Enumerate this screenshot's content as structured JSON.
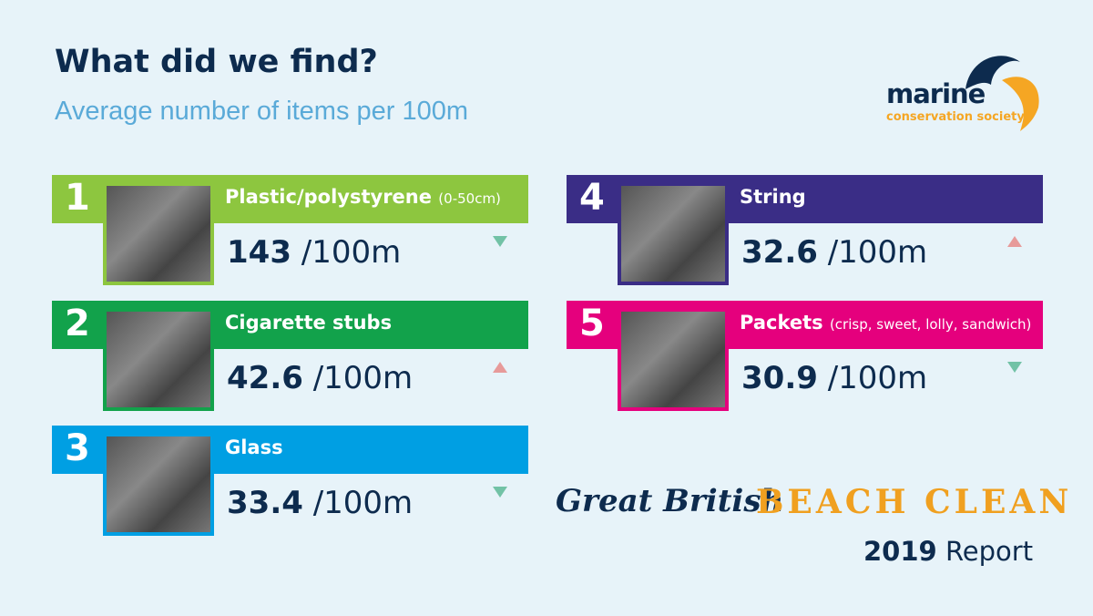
{
  "header": {
    "title": "What did we find?",
    "subtitle": "Average number of items per 100m"
  },
  "logo": {
    "name": "marine",
    "tagline": "conservation society"
  },
  "items": [
    {
      "rank": "1",
      "name": "Plastic/polystyrene",
      "note": "(0-50cm)",
      "value": "143",
      "unit": "/100m",
      "trend": "down",
      "color": "#8dc63f"
    },
    {
      "rank": "2",
      "name": "Cigarette stubs",
      "value": "42.6",
      "unit": "/100m",
      "trend": "up",
      "color": "#12a24b"
    },
    {
      "rank": "3",
      "name": "Glass",
      "value": "33.4",
      "unit": "/100m",
      "trend": "down",
      "color": "#009fe3"
    },
    {
      "rank": "4",
      "name": "String",
      "value": "32.6",
      "unit": "/100m",
      "trend": "up",
      "color": "#3a2d86"
    },
    {
      "rank": "5",
      "name": "Packets",
      "note": "(crisp, sweet, lolly, sandwich)",
      "value": "30.9",
      "unit": "/100m",
      "trend": "down",
      "color": "#e5007d"
    }
  ],
  "footer": {
    "script": "Great British",
    "event": "BEACH CLEAN",
    "year": "2019",
    "report": "Report"
  }
}
